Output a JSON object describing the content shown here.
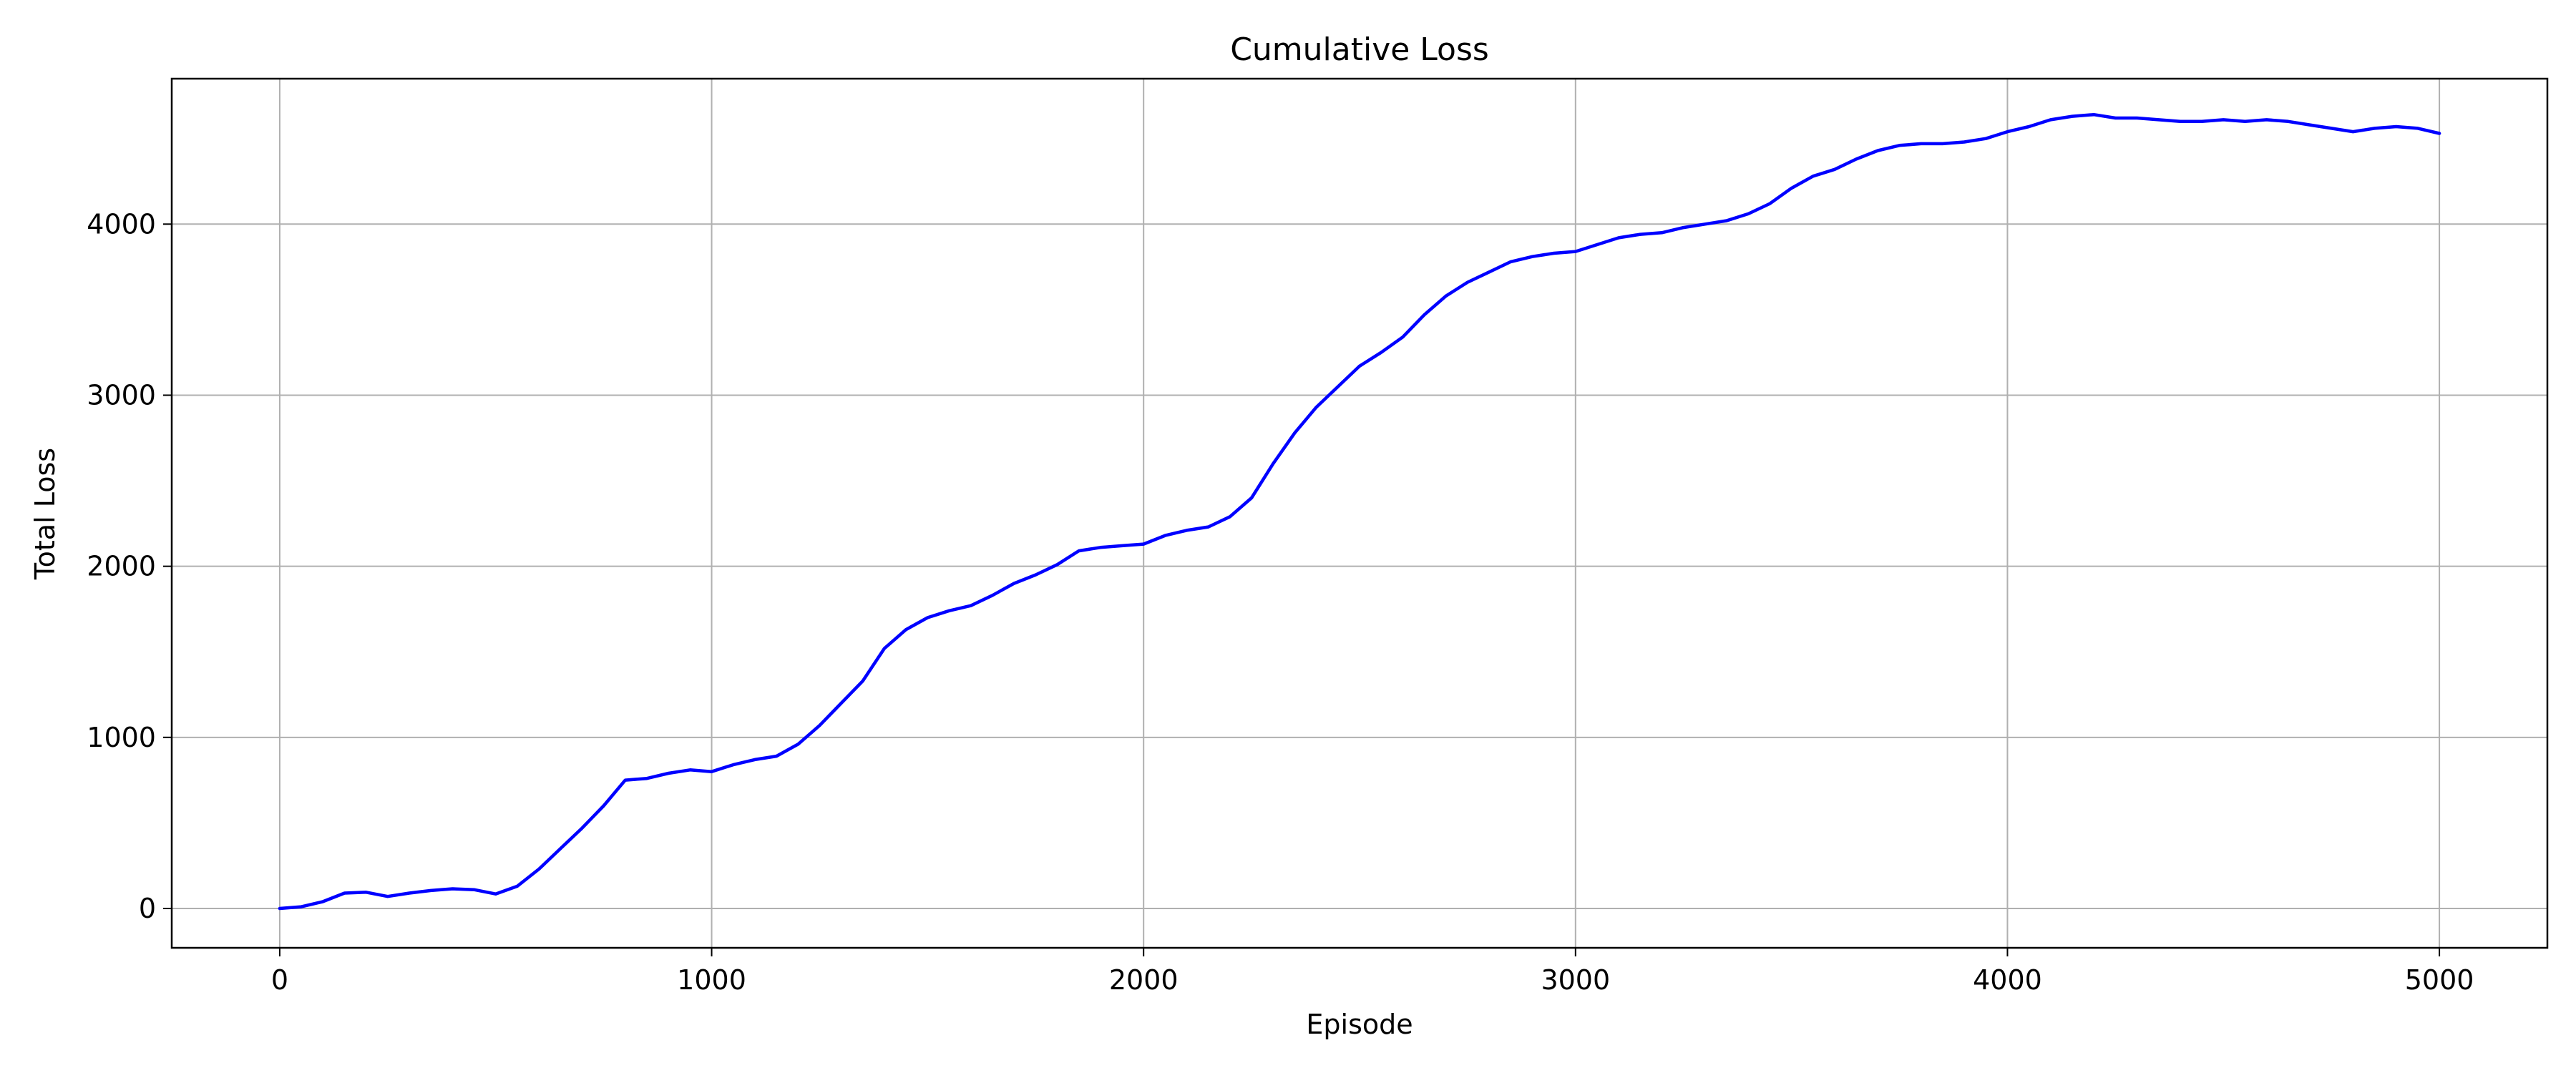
{
  "chart_data": {
    "type": "line",
    "title": "Cumulative Loss",
    "xlabel": "Episode",
    "ylabel": "Total Loss",
    "xlim": [
      -250,
      5250
    ],
    "ylim": [
      -230,
      4850
    ],
    "xticks": [
      0,
      1000,
      2000,
      3000,
      4000,
      5000
    ],
    "yticks": [
      0,
      1000,
      2000,
      3000,
      4000
    ],
    "grid": true,
    "legend": "none",
    "series": [
      {
        "color": "#0000ff",
        "x": [
          0,
          50,
          100,
          150,
          200,
          250,
          300,
          350,
          400,
          450,
          500,
          550,
          600,
          650,
          700,
          750,
          800,
          850,
          900,
          950,
          1000,
          1050,
          1100,
          1150,
          1200,
          1250,
          1300,
          1350,
          1400,
          1450,
          1500,
          1550,
          1600,
          1650,
          1700,
          1750,
          1800,
          1850,
          1900,
          1950,
          2000,
          2050,
          2100,
          2150,
          2200,
          2250,
          2300,
          2350,
          2400,
          2450,
          2500,
          2550,
          2600,
          2650,
          2700,
          2750,
          2800,
          2850,
          2900,
          2950,
          3000,
          3050,
          3100,
          3150,
          3200,
          3250,
          3300,
          3350,
          3400,
          3450,
          3500,
          3550,
          3600,
          3650,
          3700,
          3750,
          3800,
          3850,
          3900,
          3950,
          4000,
          4050,
          4100,
          4150,
          4200,
          4250,
          4300,
          4350,
          4400,
          4450,
          4500,
          4550,
          4600,
          4650,
          4700,
          4750,
          4800,
          4850,
          4900,
          4950,
          5000
        ],
        "y": [
          0,
          10,
          40,
          90,
          95,
          70,
          90,
          105,
          115,
          110,
          85,
          130,
          230,
          350,
          470,
          600,
          750,
          760,
          790,
          810,
          800,
          840,
          870,
          890,
          960,
          1070,
          1200,
          1330,
          1520,
          1630,
          1700,
          1740,
          1770,
          1830,
          1900,
          1950,
          2010,
          2090,
          2110,
          2120,
          2130,
          2180,
          2210,
          2230,
          2290,
          2400,
          2600,
          2780,
          2930,
          3050,
          3170,
          3250,
          3340,
          3470,
          3580,
          3660,
          3720,
          3780,
          3810,
          3830,
          3840,
          3880,
          3920,
          3940,
          3950,
          3980,
          4000,
          4020,
          4060,
          4120,
          4210,
          4280,
          4320,
          4380,
          4430,
          4460,
          4470,
          4470,
          4480,
          4500,
          4540,
          4570,
          4610,
          4630,
          4640,
          4620,
          4620,
          4610,
          4600,
          4600,
          4610,
          4600,
          4610,
          4600,
          4580,
          4560,
          4540,
          4560,
          4570,
          4560,
          4530
        ]
      }
    ]
  }
}
